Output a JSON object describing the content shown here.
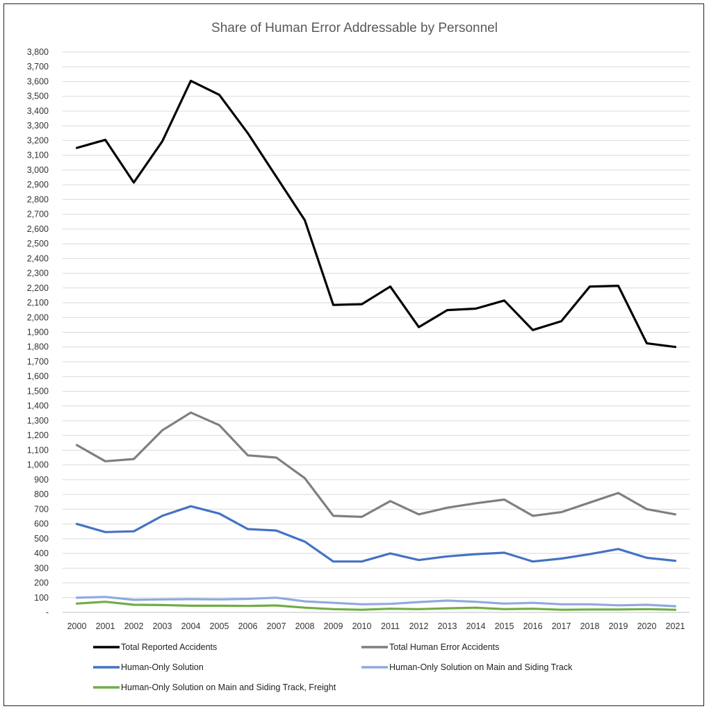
{
  "chart_data": {
    "type": "line",
    "title": "Share of Human Error Addressable by Personnel",
    "xlabel": "",
    "ylabel": "",
    "ylim": [
      0,
      3800
    ],
    "y_ticks": [
      0,
      100,
      200,
      300,
      400,
      500,
      600,
      700,
      800,
      900,
      1000,
      1100,
      1200,
      1300,
      1400,
      1500,
      1600,
      1700,
      1800,
      1900,
      2000,
      2100,
      2200,
      2300,
      2400,
      2500,
      2600,
      2700,
      2800,
      2900,
      3000,
      3100,
      3200,
      3300,
      3400,
      3500,
      3600,
      3700,
      3800
    ],
    "y_tick_labels": [
      "-",
      "100",
      "200",
      "300",
      "400",
      "500",
      "600",
      "700",
      "800",
      "900",
      "1,000",
      "1,100",
      "1,200",
      "1,300",
      "1,400",
      "1,500",
      "1,600",
      "1,700",
      "1,800",
      "1,900",
      "2,000",
      "2,100",
      "2,200",
      "2,300",
      "2,400",
      "2,500",
      "2,600",
      "2,700",
      "2,800",
      "2,900",
      "3,000",
      "3,100",
      "3,200",
      "3,300",
      "3,400",
      "3,500",
      "3,600",
      "3,700",
      "3,800"
    ],
    "grid": true,
    "legend_position": "bottom",
    "categories": [
      "2000",
      "2001",
      "2002",
      "2003",
      "2004",
      "2005",
      "2006",
      "2007",
      "2008",
      "2009",
      "2010",
      "2011",
      "2012",
      "2013",
      "2014",
      "2015",
      "2016",
      "2017",
      "2018",
      "2019",
      "2020",
      "2021"
    ],
    "series": [
      {
        "name": "Total Reported Accidents",
        "color": "#000000",
        "values": [
          3150,
          3205,
          2915,
          3195,
          3605,
          3510,
          3250,
          2955,
          2660,
          2085,
          2090,
          2210,
          1935,
          2050,
          2060,
          2115,
          1915,
          1975,
          2210,
          2215,
          1825,
          1800
        ]
      },
      {
        "name": "Total Human Error Accidents",
        "color": "#7f7f7f",
        "values": [
          1135,
          1025,
          1040,
          1235,
          1355,
          1270,
          1065,
          1050,
          910,
          655,
          648,
          755,
          665,
          710,
          740,
          765,
          655,
          680,
          745,
          810,
          700,
          665
        ]
      },
      {
        "name": "Human-Only Solution",
        "color": "#4472c4",
        "values": [
          600,
          545,
          550,
          655,
          720,
          670,
          565,
          555,
          480,
          345,
          345,
          400,
          355,
          380,
          395,
          405,
          345,
          365,
          395,
          430,
          370,
          350
        ]
      },
      {
        "name": "Human-Only Solution on Main and Siding Track",
        "color": "#8faadc",
        "values": [
          100,
          105,
          85,
          88,
          90,
          88,
          92,
          100,
          75,
          65,
          55,
          58,
          70,
          80,
          72,
          60,
          65,
          55,
          55,
          48,
          52,
          42
        ]
      },
      {
        "name": "Human-Only Solution on Main and Siding Track, Freight",
        "color": "#70ad47",
        "values": [
          60,
          72,
          52,
          50,
          45,
          45,
          44,
          47,
          32,
          22,
          18,
          25,
          22,
          28,
          32,
          22,
          25,
          18,
          20,
          20,
          22,
          18
        ]
      }
    ]
  }
}
